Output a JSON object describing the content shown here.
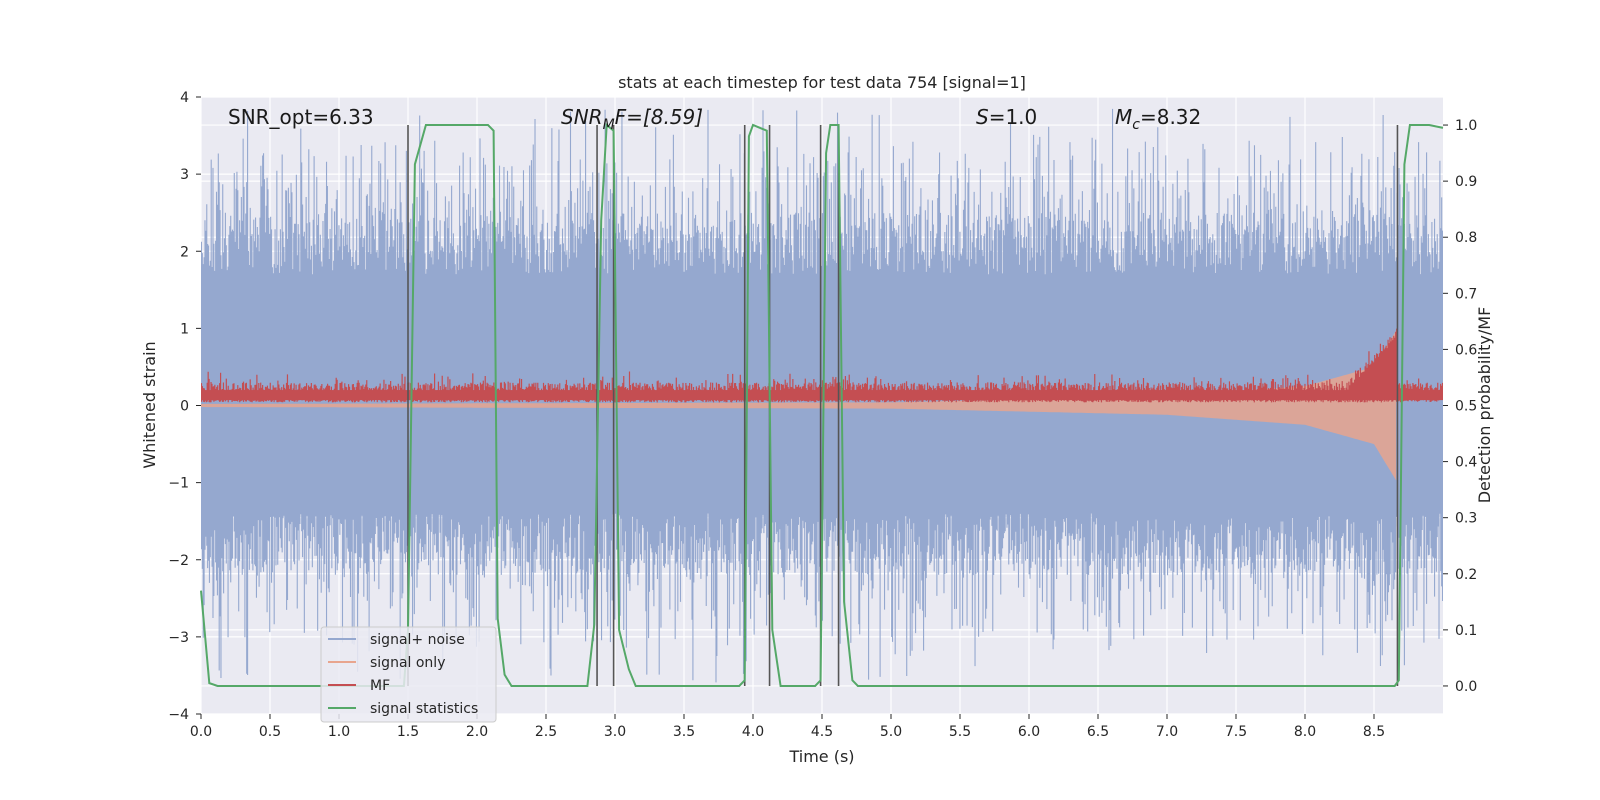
{
  "chart_data": {
    "type": "line",
    "title": "stats at each timestep for test data 754 [signal=1]",
    "xlabel": "Time (s)",
    "ylabel_left": "Whitened strain",
    "ylabel_right": "Detection probability/MF",
    "xlim": [
      0.0,
      9.0
    ],
    "ylim_left": [
      -4.0,
      4.0
    ],
    "ylim_right": [
      -0.05,
      1.05
    ],
    "x_ticks": [
      0.0,
      0.5,
      1.0,
      1.5,
      2.0,
      2.5,
      3.0,
      3.5,
      4.0,
      4.5,
      5.0,
      5.5,
      6.0,
      6.5,
      7.0,
      7.5,
      8.0,
      8.5
    ],
    "x_tick_labels": [
      "0.0",
      "0.5",
      "1.0",
      "1.5",
      "2.0",
      "2.5",
      "3.0",
      "3.5",
      "4.0",
      "4.5",
      "5.0",
      "5.5",
      "6.0",
      "6.5",
      "7.0",
      "7.5",
      "8.0",
      "8.5"
    ],
    "y_left_ticks": [
      4,
      3,
      2,
      1,
      0,
      -1,
      -2,
      -3,
      -4
    ],
    "y_left_tick_labels": [
      "4",
      "3",
      "2",
      "1",
      "0",
      "−1",
      "−2",
      "−3",
      "−4"
    ],
    "y_right_ticks": [
      1.0,
      0.9,
      0.8,
      0.7,
      0.6,
      0.5,
      0.4,
      0.3,
      0.2,
      0.1,
      0.0
    ],
    "y_right_tick_labels": [
      "1.0",
      "0.9",
      "0.8",
      "0.7",
      "0.6",
      "0.5",
      "0.4",
      "0.3",
      "0.2",
      "0.1",
      "0.0"
    ],
    "grid": true,
    "legend_position": "lower-left",
    "annotations": {
      "snr_opt": "SNR_opt=6.33",
      "snr_mf_main": "SNR",
      "snr_mf_sub": "M",
      "snr_mf_rest": "F=[8.59]",
      "s_var": "S",
      "s_rest": "=1.0",
      "mc_var": "M",
      "mc_sub": "c",
      "mc_rest": "=8.32"
    },
    "detection_lines_x": [
      1.5,
      2.87,
      2.99,
      3.94,
      4.12,
      4.49,
      4.62,
      8.67
    ],
    "series": [
      {
        "name": "signal+ noise",
        "color": "#95a8cf",
        "envelope_typical": [
          -1.4,
          1.7
        ],
        "envelope_extreme": [
          -3.6,
          3.85
        ]
      },
      {
        "name": "signal only",
        "color": "#e8a58e",
        "description_points": [
          [
            0.0,
            0.02
          ],
          [
            5.0,
            0.04
          ],
          [
            7.0,
            0.12
          ],
          [
            8.0,
            0.25
          ],
          [
            8.5,
            0.5
          ],
          [
            8.67,
            1.0
          ]
        ]
      },
      {
        "name": "MF",
        "color": "#c44e52",
        "baseline": 0.13,
        "peak": [
          8.67,
          1.0
        ]
      },
      {
        "name": "signal statistics",
        "color": "#55a868",
        "points": [
          [
            0.0,
            0.17
          ],
          [
            0.06,
            0.005
          ],
          [
            0.12,
            0.0
          ],
          [
            1.47,
            0.0
          ],
          [
            1.5,
            0.1
          ],
          [
            1.55,
            0.93
          ],
          [
            1.63,
            1.0
          ],
          [
            2.08,
            1.0
          ],
          [
            2.12,
            0.99
          ],
          [
            2.15,
            0.12
          ],
          [
            2.2,
            0.02
          ],
          [
            2.25,
            0.0
          ],
          [
            2.8,
            0.0
          ],
          [
            2.85,
            0.11
          ],
          [
            2.9,
            0.83
          ],
          [
            2.94,
            1.0
          ],
          [
            2.99,
            0.99
          ],
          [
            3.03,
            0.1
          ],
          [
            3.1,
            0.03
          ],
          [
            3.15,
            0.0
          ],
          [
            3.9,
            0.0
          ],
          [
            3.94,
            0.01
          ],
          [
            3.97,
            0.98
          ],
          [
            4.0,
            1.0
          ],
          [
            4.1,
            0.99
          ],
          [
            4.14,
            0.1
          ],
          [
            4.2,
            0.0
          ],
          [
            4.45,
            0.0
          ],
          [
            4.49,
            0.01
          ],
          [
            4.53,
            0.95
          ],
          [
            4.56,
            1.0
          ],
          [
            4.62,
            1.0
          ],
          [
            4.66,
            0.15
          ],
          [
            4.72,
            0.01
          ],
          [
            4.76,
            0.0
          ],
          [
            8.65,
            0.0
          ],
          [
            8.68,
            0.01
          ],
          [
            8.72,
            0.93
          ],
          [
            8.76,
            1.0
          ],
          [
            8.9,
            1.0
          ],
          [
            9.0,
            0.995
          ]
        ]
      }
    ]
  }
}
